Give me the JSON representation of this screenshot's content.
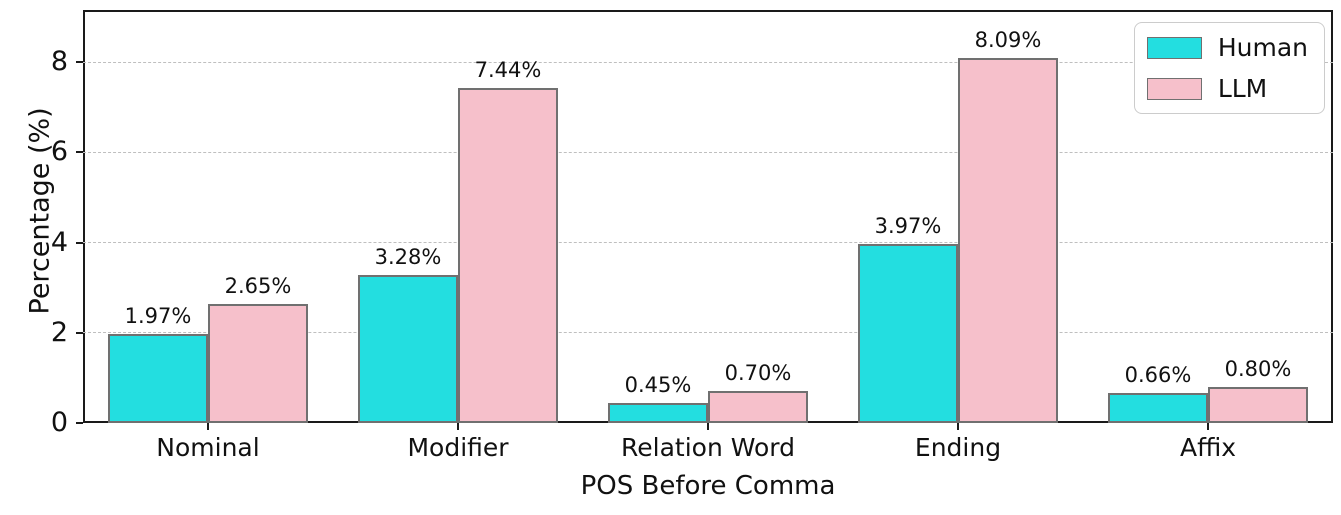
{
  "chart_data": {
    "type": "bar",
    "title": "",
    "xlabel": "POS Before Comma",
    "ylabel": "Percentage (%)",
    "categories": [
      "Nominal",
      "Modifier",
      "Relation Word",
      "Ending",
      "Affix"
    ],
    "series": [
      {
        "name": "Human",
        "color": "#23DEE0",
        "values": [
          1.97,
          3.28,
          0.45,
          3.97,
          0.66
        ],
        "labels": [
          "1.97%",
          "3.28%",
          "0.45%",
          "3.97%",
          "0.66%"
        ]
      },
      {
        "name": "LLM",
        "color": "#F6C0CB",
        "values": [
          2.65,
          7.44,
          0.7,
          8.09,
          0.8
        ],
        "labels": [
          "2.65%",
          "7.44%",
          "0.70%",
          "8.09%",
          "0.80%"
        ]
      }
    ],
    "yticks": [
      0,
      2,
      4,
      6,
      8
    ],
    "ytick_labels": [
      "0",
      "2",
      "4",
      "6",
      "8"
    ],
    "ylim": [
      0,
      9.16
    ],
    "grid": "horizontal-dashed",
    "legend_position": "top-right",
    "bar_edge_color": "#707070",
    "gridline_color": "#bfbfbf"
  }
}
